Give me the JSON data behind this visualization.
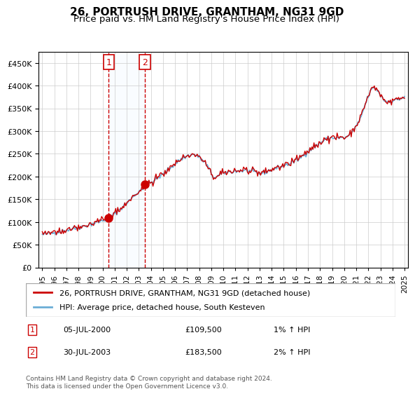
{
  "title": "26, PORTRUSH DRIVE, GRANTHAM, NG31 9GD",
  "subtitle": "Price paid vs. HM Land Registry's House Price Index (HPI)",
  "legend_line1": "26, PORTRUSH DRIVE, GRANTHAM, NG31 9GD (detached house)",
  "legend_line2": "HPI: Average price, detached house, South Kesteven",
  "transaction1_date": "05-JUL-2000",
  "transaction1_price": 109500,
  "transaction1_hpi": "1%",
  "transaction2_date": "30-JUL-2003",
  "transaction2_price": 183500,
  "transaction2_hpi": "2%",
  "footer": "Contains HM Land Registry data © Crown copyright and database right 2024.\nThis data is licensed under the Open Government Licence v3.0.",
  "hpi_color": "#6baed6",
  "price_color": "#cc0000",
  "marker_color": "#cc0000",
  "highlight_color": "#ddeeff",
  "vline_color": "#cc0000",
  "background": "#ffffff",
  "grid_color": "#cccccc",
  "ylim": [
    0,
    475000
  ],
  "yticks": [
    0,
    50000,
    100000,
    150000,
    200000,
    250000,
    300000,
    350000,
    400000,
    450000
  ],
  "xlabel_rotation": 90,
  "transaction1_x": 2000.5,
  "transaction2_x": 2003.5
}
